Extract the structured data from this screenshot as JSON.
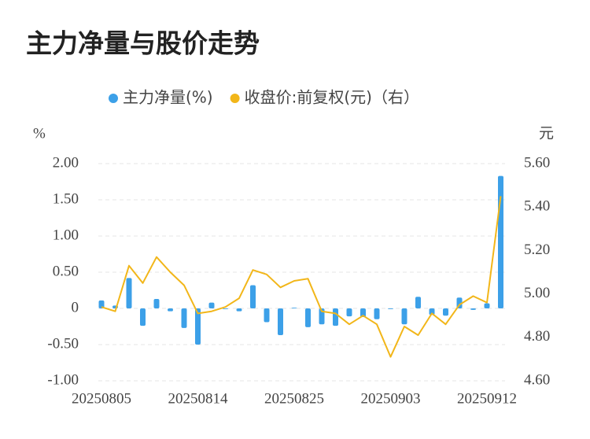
{
  "chart_data": {
    "type": "bar_line",
    "title": "主力净量与股价走势",
    "y_label": "%",
    "y2_label": "元",
    "categories": [
      "20250805",
      null,
      null,
      null,
      null,
      null,
      null,
      "20250814",
      null,
      null,
      null,
      null,
      null,
      null,
      "20250825",
      null,
      null,
      null,
      null,
      null,
      null,
      "20250903",
      null,
      null,
      null,
      null,
      null,
      null,
      "20250912",
      null
    ],
    "series": [
      {
        "name": "主力净量(%)",
        "type": "bar",
        "color": "#3ca0e8",
        "values": [
          0.11,
          0.04,
          0.42,
          -0.24,
          0.13,
          -0.04,
          -0.27,
          -0.5,
          0.08,
          -0.01,
          -0.04,
          0.32,
          -0.19,
          -0.37,
          0.01,
          -0.26,
          -0.22,
          -0.24,
          -0.11,
          -0.12,
          -0.15,
          -0.01,
          -0.22,
          0.16,
          -0.09,
          -0.1,
          0.15,
          -0.02,
          0.07,
          1.83
        ]
      },
      {
        "name": "收盘价:前复权(元)（右）",
        "type": "line",
        "axis": "y2",
        "color": "#f2b619",
        "values": [
          4.94,
          4.92,
          5.13,
          5.05,
          5.17,
          5.1,
          5.04,
          4.91,
          4.92,
          4.94,
          4.98,
          5.11,
          5.09,
          5.03,
          5.06,
          5.07,
          4.92,
          4.91,
          4.86,
          4.9,
          4.86,
          4.71,
          4.85,
          4.81,
          4.91,
          4.86,
          4.95,
          4.99,
          4.96,
          5.45
        ]
      }
    ],
    "ylim": [
      -1,
      2
    ],
    "yticks": [
      {
        "value": -1,
        "label": "-1.00"
      },
      {
        "value": -0.5,
        "label": "-0.50"
      },
      0,
      {
        "value": 0.5,
        "label": "0.50"
      },
      {
        "value": 1,
        "label": "1.00"
      },
      {
        "value": 1.5,
        "label": "1.50"
      },
      {
        "value": 2,
        "label": "2.00"
      }
    ],
    "y2lim": [
      4.6,
      5.6
    ],
    "y2ticks": [
      {
        "value": 4.6,
        "label": "4.60"
      },
      {
        "value": 4.8,
        "label": "4.80"
      },
      {
        "value": 5,
        "label": "5.00"
      },
      {
        "value": 5.2,
        "label": "5.20"
      },
      {
        "value": 5.4,
        "label": "5.40"
      },
      {
        "value": 5.6,
        "label": "5.60"
      }
    ],
    "grid": true,
    "legend": "top"
  }
}
